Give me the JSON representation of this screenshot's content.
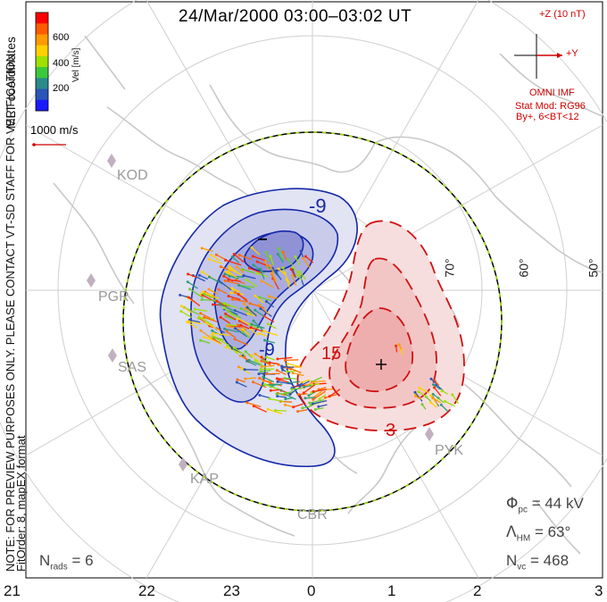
{
  "title": "24/Mar/2000 03:00–03:02 UT",
  "color_bar": {
    "label": "Vel [m/s]",
    "ticks": [
      "600",
      "400",
      "200"
    ],
    "colors": [
      "#ff0000",
      "#ff5a00",
      "#ff9a00",
      "#ffd000",
      "#9ee000",
      "#3cc83c",
      "#2a8a8a",
      "#2b55b8",
      "#1a1aff"
    ]
  },
  "coords_label": "MLT coordinates",
  "scale_vector": "1000 m/s",
  "side_note": {
    "line1": "NOTE: FOR PREVIEW PURPOSES ONLY. PLEASE CONTACT VT-SD STAFF FOR VERIFICATION.",
    "line2": "FitOrder: 8, mapEX format"
  },
  "imf": {
    "bz_label": "+Z (10 nT)",
    "by_label": "+Y",
    "source": "OMNI IMF",
    "model": "Stat Mod: RG96",
    "condition": "By+, 6<BT<12"
  },
  "contour_labels": {
    "neg": "-9",
    "neg2": "-9",
    "pos": "15",
    "pos2": "3"
  },
  "lat_labels": [
    "70°",
    "60°",
    "50°"
  ],
  "stations": [
    "KOD",
    "PGR",
    "SAS",
    "KAP",
    "CBR",
    "PYK"
  ],
  "stats": {
    "phi_pc": "= 44 kV",
    "lambda_hm": "= 63°",
    "n_vc": "= 468",
    "n_rads": "= 6"
  },
  "mlt_ticks": [
    "21",
    "22",
    "23",
    "0",
    "1",
    "2",
    "3"
  ]
}
